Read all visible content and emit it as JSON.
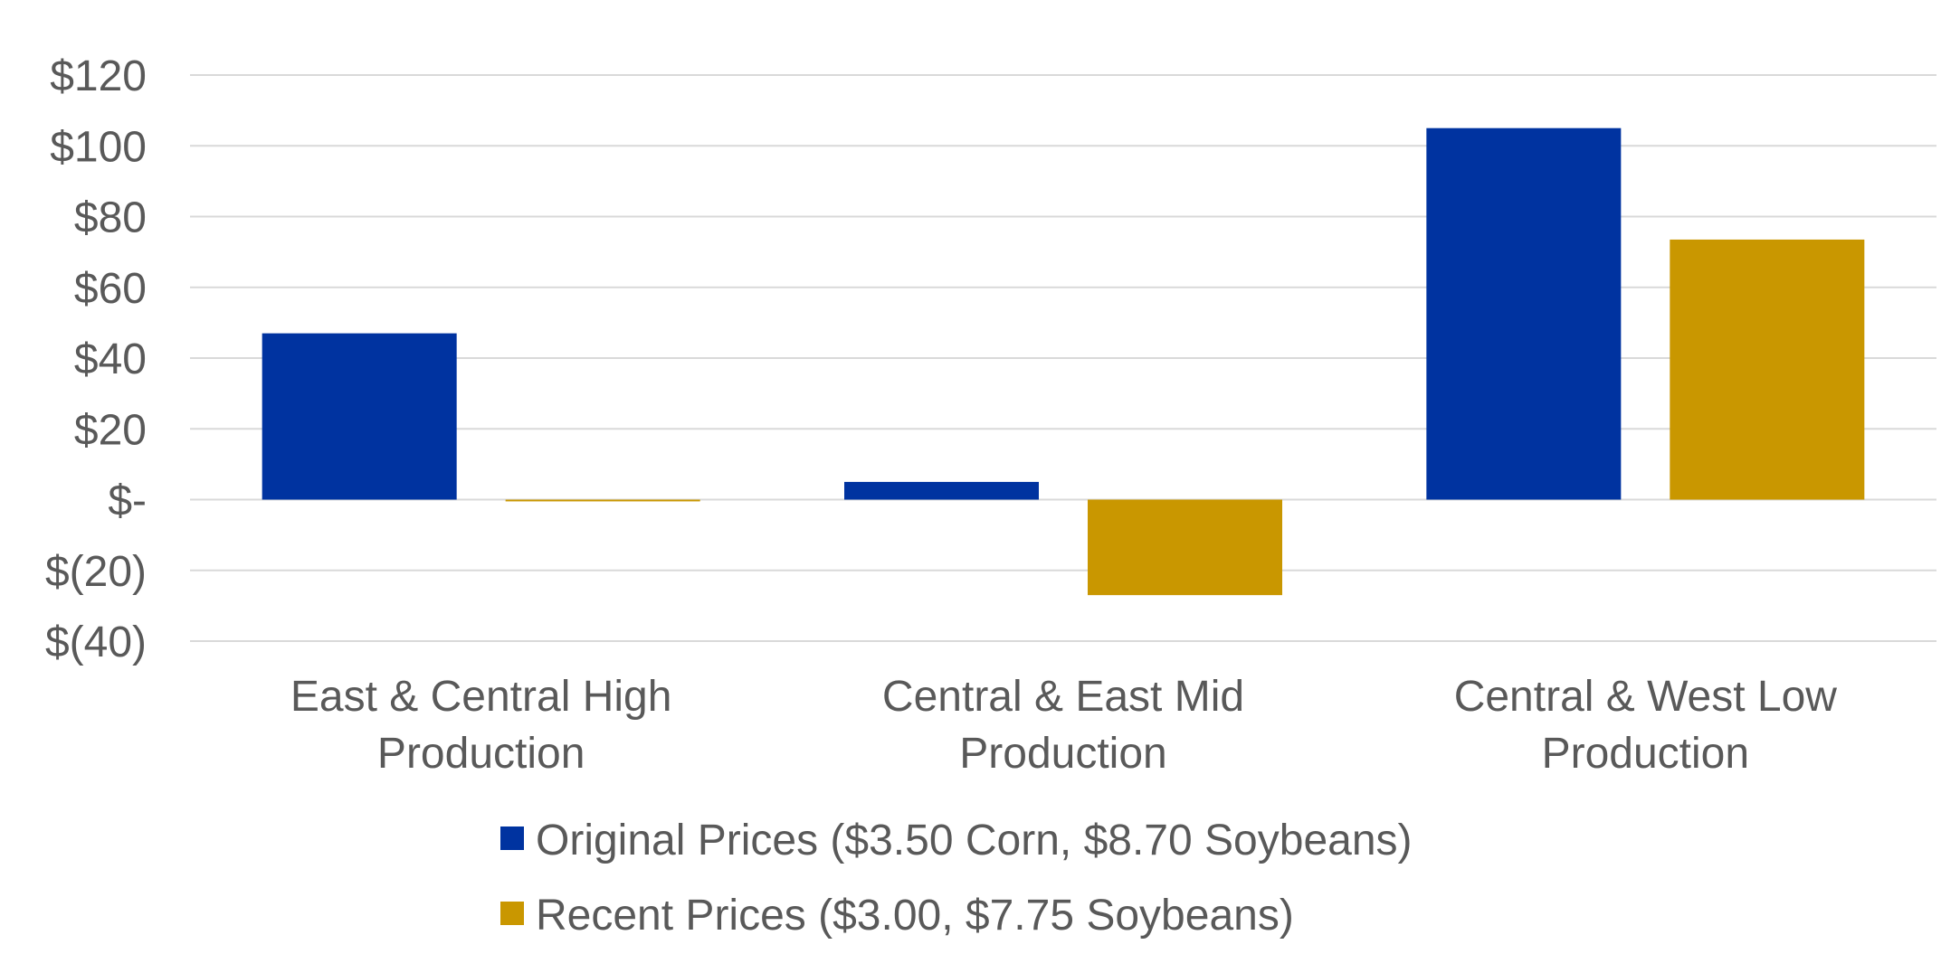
{
  "chart_data": {
    "type": "bar",
    "title": "",
    "xlabel": "",
    "ylabel": "",
    "categories": [
      [
        "East & Central High",
        "Production"
      ],
      [
        "Central & East Mid",
        "Production"
      ],
      [
        "Central & West Low",
        "Production"
      ]
    ],
    "series": [
      {
        "name": "Original Prices ($3.50 Corn, $8.70 Soybeans)",
        "color": "#0033a0",
        "values": [
          47,
          5,
          105
        ]
      },
      {
        "name": "Recent Prices ($3.00, $7.75 Soybeans)",
        "color": "#c99700",
        "values": [
          -0.5,
          -27,
          73.5
        ]
      }
    ],
    "ylim": [
      -40,
      120
    ],
    "yticks": [
      120,
      100,
      80,
      60,
      40,
      20,
      0,
      -20,
      -40
    ],
    "ytick_labels": [
      "$120",
      "$100",
      "$80",
      "$60",
      "$40",
      "$20",
      "$-",
      "$(20)",
      "$(40)"
    ],
    "grid": true,
    "legend_position": "bottom"
  }
}
